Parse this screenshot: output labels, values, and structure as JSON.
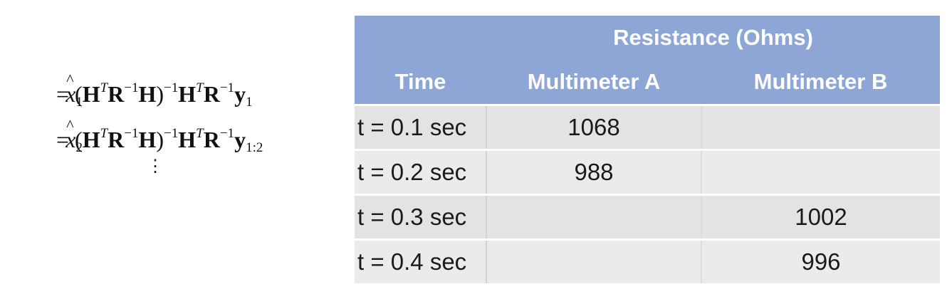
{
  "equations": {
    "eq1": {
      "lhs_var": "x",
      "lhs_sub": "1",
      "y_sub": "1"
    },
    "eq2": {
      "lhs_var": "x",
      "lhs_sub": "2",
      "y_sub": "1:2"
    },
    "continuation": "⋮"
  },
  "table": {
    "group_header": "Resistance (Ohms)",
    "columns": [
      "Time",
      "Multimeter A",
      "Multimeter B"
    ],
    "rows": [
      {
        "time": "t = 0.1 sec",
        "a": "1068",
        "b": ""
      },
      {
        "time": "t = 0.2 sec",
        "a": "988",
        "b": ""
      },
      {
        "time": "t = 0.3 sec",
        "a": "",
        "b": "1002"
      },
      {
        "time": "t = 0.4 sec",
        "a": "",
        "b": "996"
      }
    ]
  }
}
